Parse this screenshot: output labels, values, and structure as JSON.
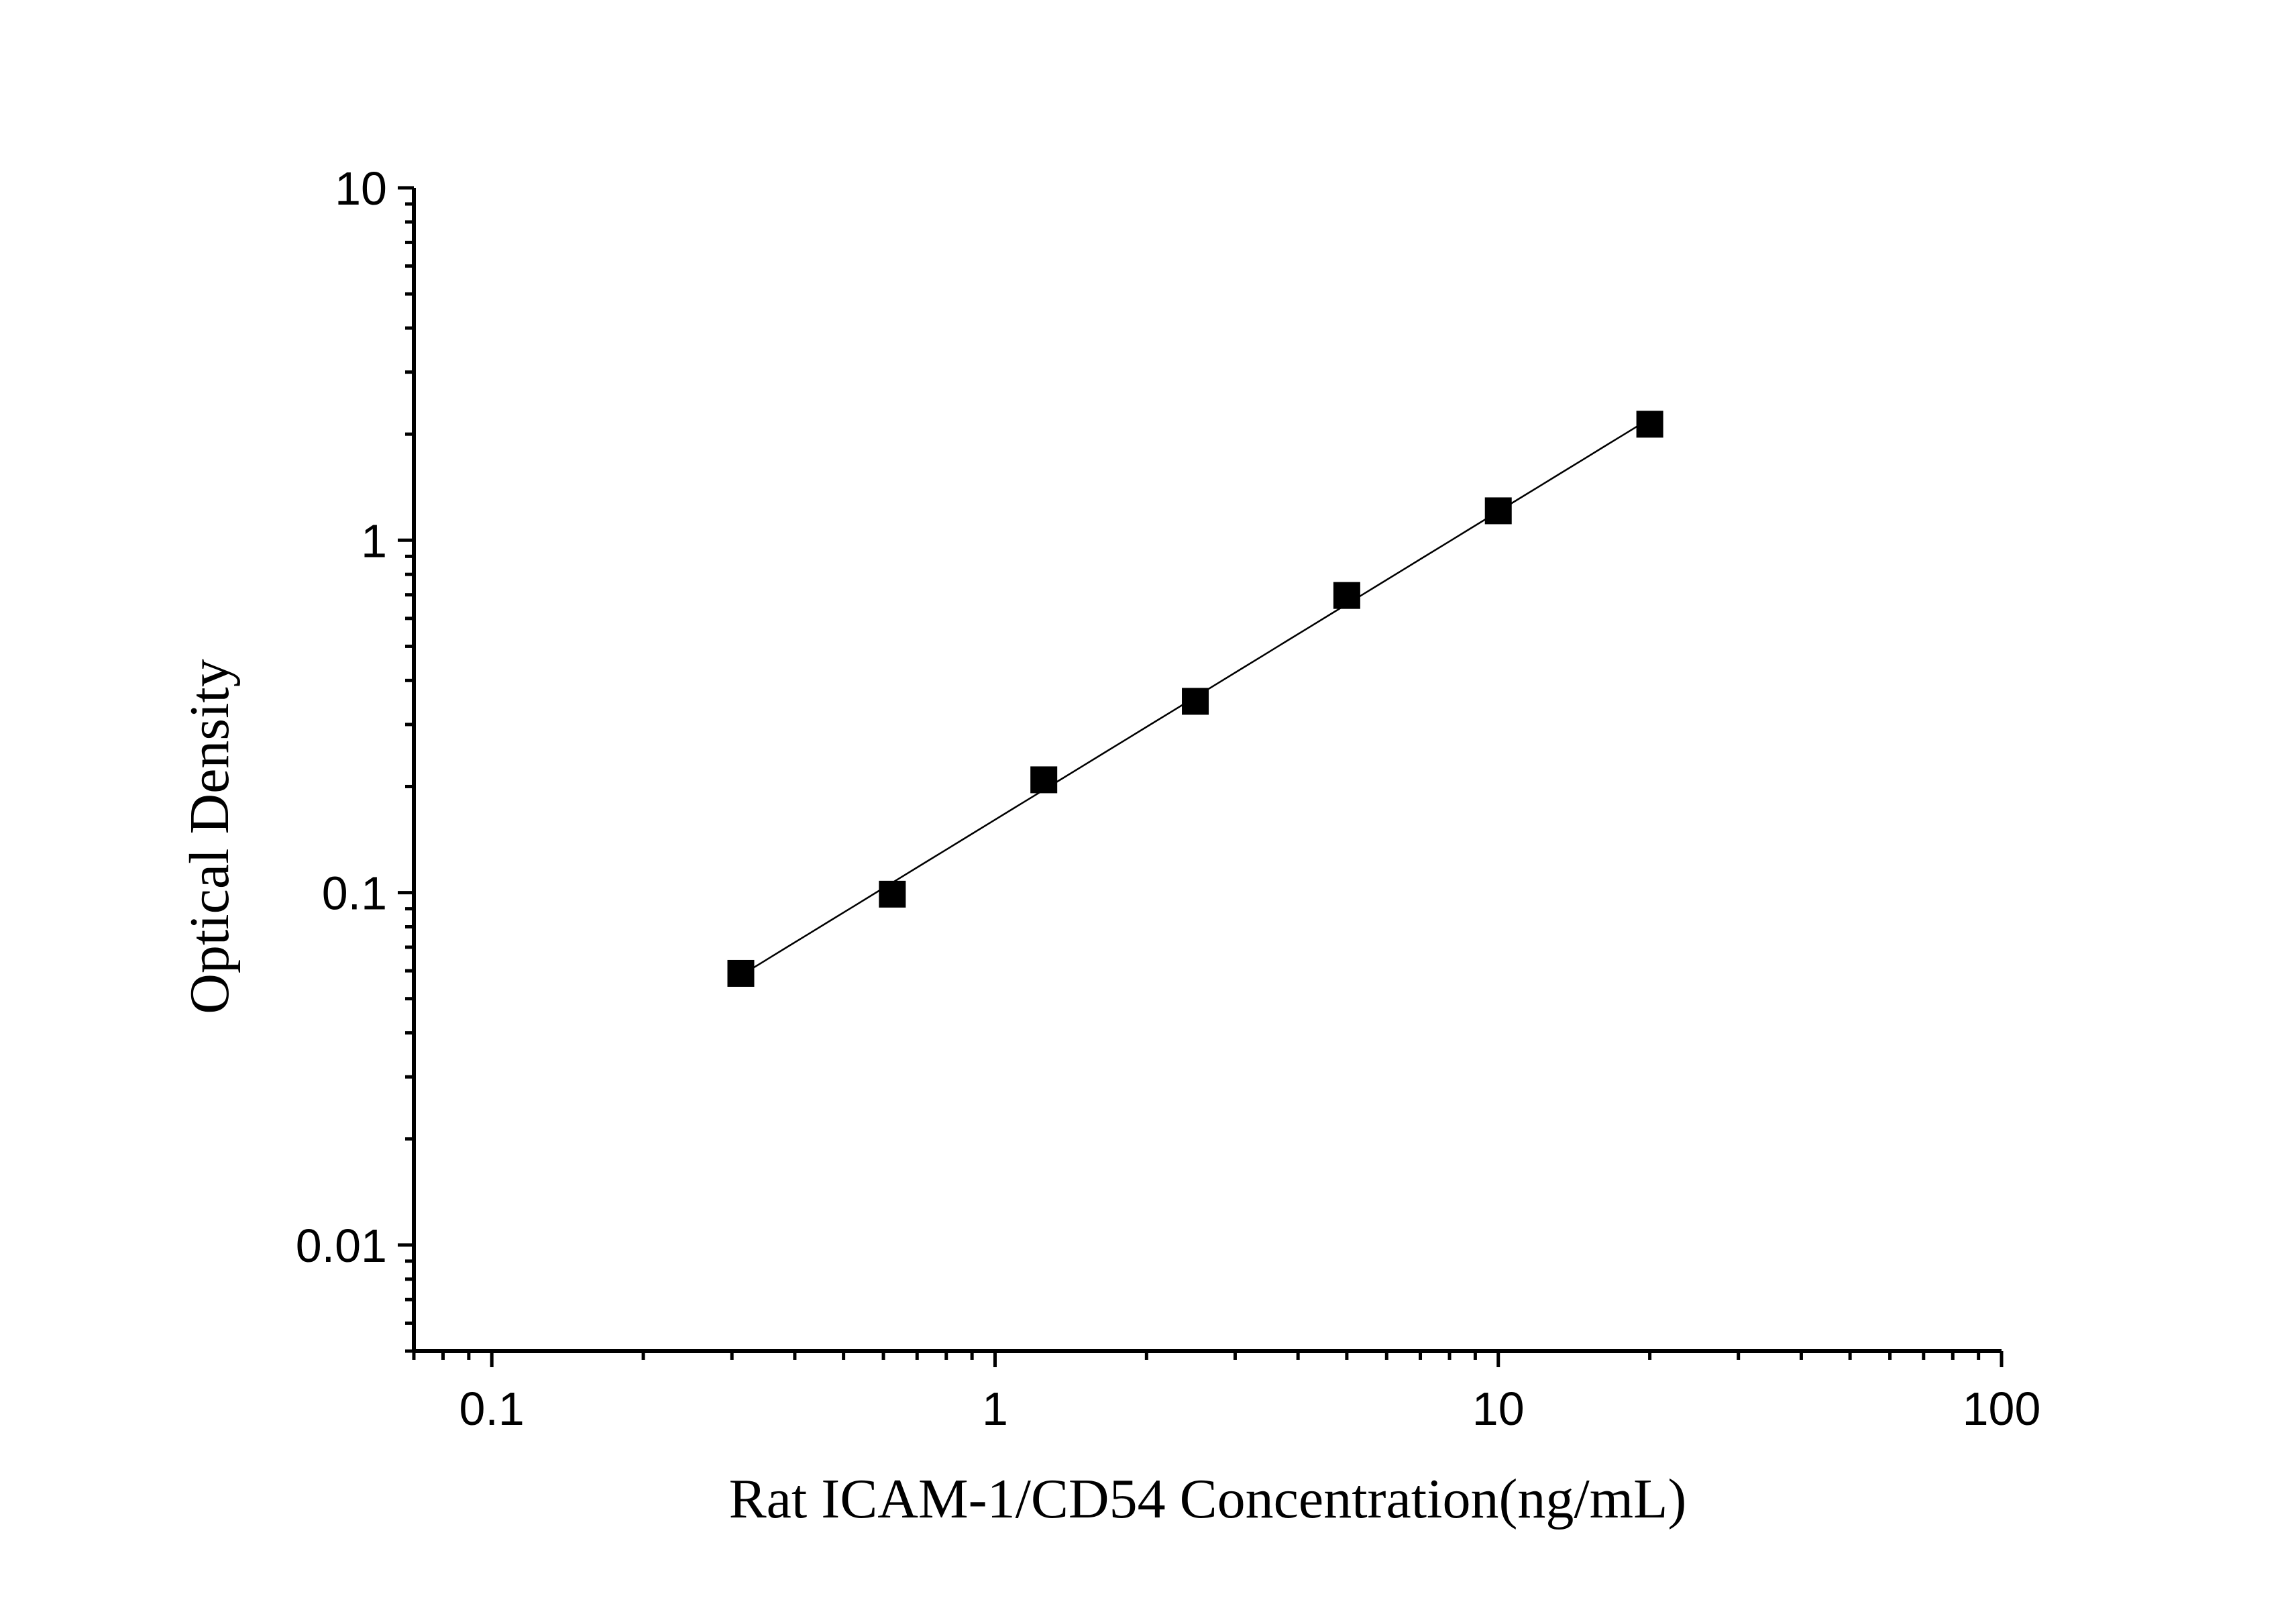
{
  "chart_data": {
    "type": "scatter",
    "xlabel": "Rat ICAM-1/CD54 Concentration(ng/mL)",
    "ylabel": "Optical Density",
    "xscale": "log",
    "yscale": "log",
    "xlim": [
      0.07,
      100
    ],
    "ylim": [
      0.005,
      10
    ],
    "x_ticks": [
      0.1,
      1,
      10,
      100
    ],
    "x_tick_labels": [
      "0.1",
      "1",
      "10",
      "100"
    ],
    "y_ticks": [
      0.01,
      0.1,
      1,
      10
    ],
    "y_tick_labels": [
      "0.01",
      "0.1",
      "1",
      "10"
    ],
    "grid": false,
    "marker": "square",
    "series": [
      {
        "x": [
          0.3125,
          0.625,
          1.25,
          2.5,
          5,
          10,
          20
        ],
        "y": [
          0.059,
          0.099,
          0.209,
          0.349,
          0.697,
          1.212,
          2.134
        ]
      }
    ],
    "fit_line": true,
    "colors": {
      "marker": "#000000",
      "line": "#000000"
    }
  }
}
